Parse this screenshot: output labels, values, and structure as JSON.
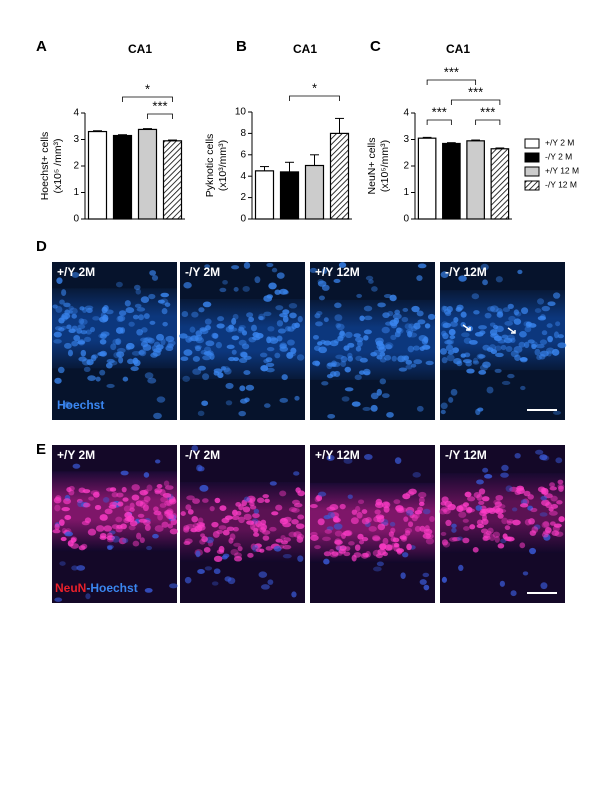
{
  "chart_data": [
    {
      "type": "bar",
      "panel": "A",
      "title": "CA1",
      "ylabel": [
        "Hoechst+ cells",
        "(x10⁵ /mm³)"
      ],
      "values": [
        3.3,
        3.15,
        3.38,
        2.95
      ],
      "errors": [
        0.03,
        0.03,
        0.03,
        0.03
      ],
      "ylim": [
        0,
        4
      ],
      "yticks": [
        0,
        1,
        2,
        3,
        4
      ],
      "annotations": [
        "*",
        "***"
      ]
    },
    {
      "type": "bar",
      "panel": "B",
      "title": "CA1",
      "ylabel": [
        "Pyknotic cells",
        "(x10³/mm³)"
      ],
      "values": [
        4.5,
        4.4,
        5.0,
        8.0
      ],
      "errors": [
        0.4,
        0.9,
        1.0,
        1.4
      ],
      "ylim": [
        0,
        10
      ],
      "yticks": [
        0,
        2,
        4,
        6,
        8,
        10
      ],
      "annotations": [
        "*"
      ]
    },
    {
      "type": "bar",
      "panel": "C",
      "title": "CA1",
      "ylabel": [
        "NeuN+ cells",
        "(x10⁵/mm³)"
      ],
      "values": [
        3.05,
        2.85,
        2.95,
        2.65
      ],
      "errors": [
        0.03,
        0.03,
        0.03,
        0.03
      ],
      "ylim": [
        0,
        4
      ],
      "yticks": [
        0,
        1,
        2,
        3,
        4
      ],
      "annotations": [
        "***",
        "***",
        "***",
        "***"
      ]
    }
  ],
  "legend": [
    {
      "name": "+/Y 2 M",
      "color": "#ffffff"
    },
    {
      "name": "-/Y 2 M",
      "color": "#000000"
    },
    {
      "name": "+/Y 12 M",
      "color": "#cccccc"
    },
    {
      "name": "-/Y 12 M",
      "color": "hatch"
    }
  ],
  "panels": {
    "D": {
      "label": "D",
      "images": [
        "+/Y 2M",
        "-/Y 2M",
        "+/Y 12M",
        "-/Y 12M"
      ],
      "caption": [
        "Hoechst"
      ]
    },
    "E": {
      "label": "E",
      "images": [
        "+/Y 2M",
        "-/Y 2M",
        "+/Y 12M",
        "-/Y 12M"
      ],
      "caption": [
        "NeuN",
        "-Hoechst"
      ]
    }
  }
}
